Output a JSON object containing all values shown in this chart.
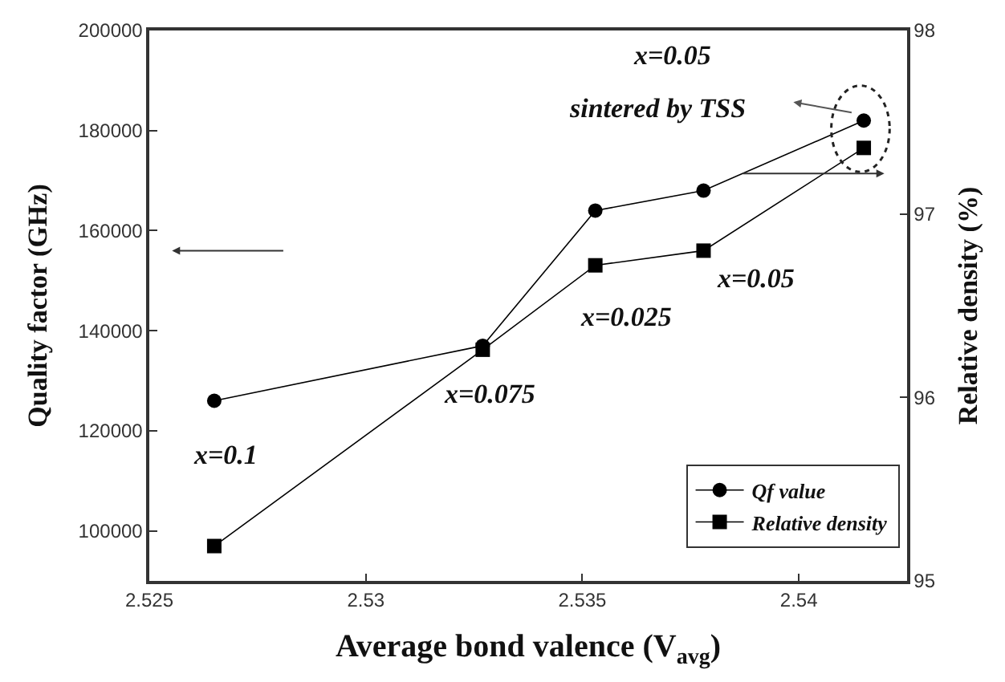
{
  "chart_data": {
    "type": "line",
    "xlabel": "Average bond valence (V$_{avg}$)",
    "ylabel": "Quality factor (GHz)",
    "y2label": "Relative density (%)",
    "x": [
      2.5265,
      2.5327,
      2.5353,
      2.5378,
      2.5415
    ],
    "series": [
      {
        "name": "Qf value",
        "color": "#000000",
        "marker": "circle",
        "values": [
          126000,
          137000,
          164000,
          168000,
          182000
        ]
      },
      {
        "name": "Relative density",
        "color": "#000000",
        "marker": "square",
        "axis": "y2",
        "values": [
          95.19,
          96.26,
          96.72,
          96.8,
          97.36
        ]
      }
    ],
    "xlim": [
      2.525,
      2.5425
    ],
    "xticks": [
      2.525,
      2.53,
      2.535,
      2.54
    ],
    "ylim": [
      90000,
      200000
    ],
    "yticks": [
      100000,
      120000,
      140000,
      160000,
      180000,
      200000
    ],
    "y2lim": [
      95,
      98
    ],
    "y2ticks": [
      95,
      96,
      97,
      98
    ],
    "annotations": [
      "x=0.1",
      "x=0.075",
      "x=0.025",
      "x=0.05",
      "x=0.05",
      "sintered by TSS"
    ],
    "legend": "bottom right",
    "line_style": "solid"
  }
}
